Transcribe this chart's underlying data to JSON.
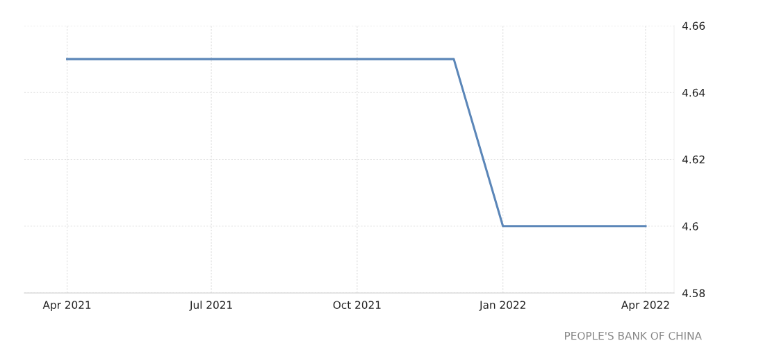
{
  "chart_data": {
    "type": "line",
    "x": [
      "2021-04",
      "2021-05",
      "2021-06",
      "2021-07",
      "2021-08",
      "2021-09",
      "2021-10",
      "2021-11",
      "2021-12",
      "2022-01",
      "2022-02",
      "2022-03",
      "2022-04"
    ],
    "series": [
      {
        "color": "#5b86b8",
        "values": [
          4.65,
          4.65,
          4.65,
          4.65,
          4.65,
          4.65,
          4.65,
          4.65,
          4.65,
          4.6,
          4.6,
          4.6,
          4.6
        ]
      }
    ],
    "xlim": [
      "2021-03-05",
      "2022-04-19"
    ],
    "xticks": [
      {
        "value": "2021-04",
        "label": "Apr 2021"
      },
      {
        "value": "2021-07",
        "label": "Jul 2021"
      },
      {
        "value": "2021-10",
        "label": "Oct 2021"
      },
      {
        "value": "2022-01",
        "label": "Jan 2022"
      },
      {
        "value": "2022-04",
        "label": "Apr 2022"
      }
    ],
    "ylim": [
      4.58,
      4.66
    ],
    "yticks": [
      4.58,
      4.6,
      4.62,
      4.64,
      4.66
    ],
    "grid": true,
    "marker": "none",
    "line_style": "solid",
    "annotations": [
      "PEOPLE'S BANK OF CHINA"
    ]
  }
}
